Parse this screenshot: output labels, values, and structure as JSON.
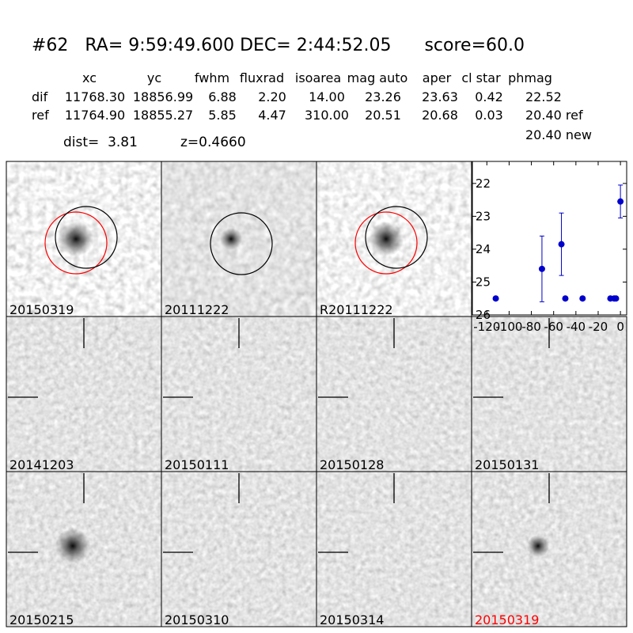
{
  "header": {
    "title": "#62   RA= 9:59:49.600 DEC= 2:44:52.05      score=60.0"
  },
  "table": {
    "columns": [
      "xc",
      "yc",
      "fwhm",
      "fluxrad",
      "isoarea",
      "mag auto",
      "aper",
      "cl star",
      "phmag"
    ],
    "rows": [
      [
        "dif",
        "11768.30",
        "18856.99",
        "6.88",
        "2.20",
        "14.00",
        "23.26",
        "23.63",
        "0.42",
        "22.52"
      ],
      [
        "ref",
        "11764.90",
        "18855.27",
        "5.85",
        "4.47",
        "310.00",
        "20.51",
        "20.68",
        "0.03",
        "20.40 ref"
      ]
    ],
    "extra": "20.40 new"
  },
  "dist": "dist=  3.81",
  "z": "z=0.4660",
  "stamps": [
    {
      "label": "20150319",
      "label_color": "#000000"
    },
    {
      "label": "20111222",
      "label_color": "#000000"
    },
    {
      "label": "R20111222",
      "label_color": "#000000"
    },
    {
      "label": "20141203",
      "label_color": "#000000"
    },
    {
      "label": "20150111",
      "label_color": "#000000"
    },
    {
      "label": "20150128",
      "label_color": "#000000"
    },
    {
      "label": "20150131",
      "label_color": "#000000"
    },
    {
      "label": "20150215",
      "label_color": "#000000"
    },
    {
      "label": "20150310",
      "label_color": "#000000"
    },
    {
      "label": "20150314",
      "label_color": "#000000"
    },
    {
      "label": "20150319",
      "label_color": "#ff0000"
    }
  ],
  "chart_data": {
    "type": "scatter",
    "color": "#0000cc",
    "x": [
      -112,
      -70.5,
      -53,
      -49.5,
      -34,
      -9,
      -5.6,
      -4,
      0
    ],
    "values": [
      25.5,
      24.6,
      23.85,
      25.5,
      25.5,
      25.5,
      25.5,
      25.5,
      22.55
    ],
    "errors": [
      0.05,
      1.0,
      0.95,
      0.05,
      0.05,
      0.05,
      0.05,
      0.05,
      0.5
    ],
    "xlim": [
      -133,
      5.6
    ],
    "xticks": [
      -120,
      -100,
      -80,
      -60,
      -40,
      -20,
      0
    ],
    "ylim": [
      26,
      21.33
    ],
    "yticks": [
      22,
      23,
      24,
      25,
      26
    ]
  }
}
